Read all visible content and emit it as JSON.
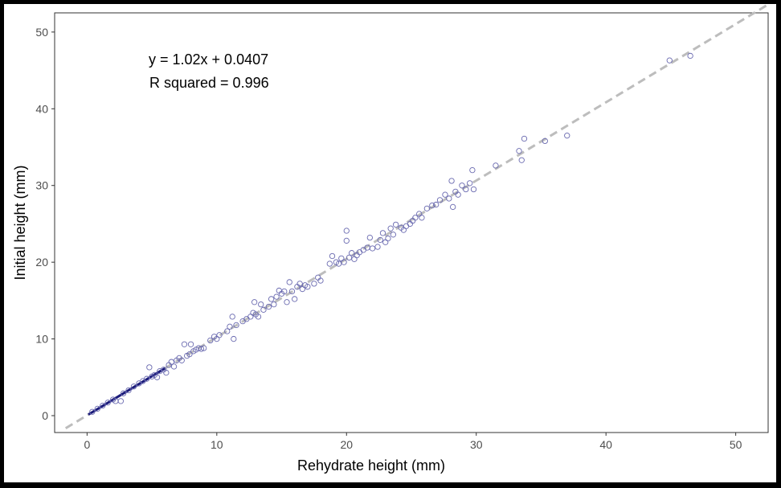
{
  "chart_data": {
    "type": "scatter",
    "xlabel": "Rehydrate height (mm)",
    "ylabel": "Initial height (mm)",
    "xlim": [
      -2.5,
      52.5
    ],
    "ylim": [
      -2.2,
      52.5
    ],
    "xticks": [
      0,
      10,
      20,
      30,
      40,
      50
    ],
    "yticks": [
      0,
      10,
      20,
      30,
      40,
      50
    ],
    "grid": false,
    "annotations": [
      "y = 1.02x + 0.0407",
      "R squared = 0.996"
    ],
    "fit_line": {
      "slope": 1.02,
      "intercept": 0.0407,
      "style": "dashed",
      "color": "#bdbdbd"
    },
    "colors": {
      "points": "#6a6ab0",
      "dense_segment": "#1a1a7a",
      "background": "#ffffff",
      "frame": "#000000"
    },
    "dense_segment": {
      "x_range": [
        0.1,
        6.0
      ]
    },
    "points": [
      [
        0.4,
        0.5
      ],
      [
        0.8,
        0.9
      ],
      [
        1.2,
        1.3
      ],
      [
        1.6,
        1.7
      ],
      [
        2.0,
        2.1
      ],
      [
        2.2,
        1.9
      ],
      [
        2.6,
        1.9
      ],
      [
        2.8,
        2.9
      ],
      [
        3.2,
        3.3
      ],
      [
        3.6,
        3.8
      ],
      [
        4.0,
        4.2
      ],
      [
        4.3,
        4.5
      ],
      [
        4.6,
        4.8
      ],
      [
        4.8,
        6.3
      ],
      [
        5.0,
        5.1
      ],
      [
        5.2,
        5.3
      ],
      [
        5.4,
        5.0
      ],
      [
        5.6,
        5.8
      ],
      [
        5.9,
        6.0
      ],
      [
        6.1,
        5.6
      ],
      [
        6.3,
        6.6
      ],
      [
        6.5,
        7.0
      ],
      [
        6.7,
        6.4
      ],
      [
        6.9,
        7.2
      ],
      [
        7.1,
        7.5
      ],
      [
        7.3,
        7.2
      ],
      [
        7.5,
        9.3
      ],
      [
        7.7,
        7.8
      ],
      [
        7.9,
        8.0
      ],
      [
        8.0,
        9.3
      ],
      [
        8.2,
        8.4
      ],
      [
        8.4,
        8.6
      ],
      [
        8.6,
        8.8
      ],
      [
        8.8,
        8.7
      ],
      [
        9.0,
        8.8
      ],
      [
        9.5,
        9.8
      ],
      [
        9.8,
        10.3
      ],
      [
        10.0,
        10.0
      ],
      [
        10.2,
        10.5
      ],
      [
        10.8,
        11.0
      ],
      [
        11.0,
        11.6
      ],
      [
        11.2,
        12.9
      ],
      [
        11.3,
        10.0
      ],
      [
        11.5,
        11.8
      ],
      [
        12.0,
        12.3
      ],
      [
        12.3,
        12.6
      ],
      [
        12.6,
        12.9
      ],
      [
        12.8,
        13.4
      ],
      [
        12.9,
        14.8
      ],
      [
        13.0,
        13.2
      ],
      [
        13.2,
        12.9
      ],
      [
        13.4,
        14.5
      ],
      [
        13.6,
        13.8
      ],
      [
        14.0,
        14.2
      ],
      [
        14.2,
        15.2
      ],
      [
        14.4,
        14.5
      ],
      [
        14.6,
        15.5
      ],
      [
        14.8,
        16.3
      ],
      [
        15.0,
        15.9
      ],
      [
        15.2,
        16.2
      ],
      [
        15.4,
        14.8
      ],
      [
        15.6,
        17.4
      ],
      [
        15.8,
        16.2
      ],
      [
        16.0,
        15.2
      ],
      [
        16.2,
        16.8
      ],
      [
        16.4,
        17.2
      ],
      [
        16.6,
        16.5
      ],
      [
        16.8,
        17.0
      ],
      [
        17.0,
        16.8
      ],
      [
        17.5,
        17.2
      ],
      [
        17.8,
        18.0
      ],
      [
        18.0,
        17.6
      ],
      [
        18.7,
        19.8
      ],
      [
        18.9,
        20.8
      ],
      [
        19.2,
        20.0
      ],
      [
        19.4,
        19.8
      ],
      [
        19.6,
        20.5
      ],
      [
        19.8,
        20.0
      ],
      [
        20.0,
        24.1
      ],
      [
        20.0,
        22.8
      ],
      [
        20.2,
        20.6
      ],
      [
        20.4,
        21.2
      ],
      [
        20.6,
        20.4
      ],
      [
        20.8,
        20.9
      ],
      [
        21.0,
        21.3
      ],
      [
        21.3,
        21.6
      ],
      [
        21.6,
        21.9
      ],
      [
        21.8,
        23.2
      ],
      [
        22.0,
        21.8
      ],
      [
        22.4,
        22.0
      ],
      [
        22.6,
        22.9
      ],
      [
        22.8,
        23.8
      ],
      [
        23.0,
        22.6
      ],
      [
        23.2,
        23.1
      ],
      [
        23.4,
        24.4
      ],
      [
        23.6,
        23.6
      ],
      [
        23.8,
        24.9
      ],
      [
        24.2,
        24.5
      ],
      [
        24.4,
        24.2
      ],
      [
        24.6,
        24.7
      ],
      [
        24.9,
        25.0
      ],
      [
        25.1,
        25.4
      ],
      [
        25.3,
        25.8
      ],
      [
        25.6,
        26.3
      ],
      [
        25.8,
        25.8
      ],
      [
        26.2,
        27.0
      ],
      [
        26.6,
        27.4
      ],
      [
        26.9,
        27.5
      ],
      [
        27.2,
        28.1
      ],
      [
        27.6,
        28.8
      ],
      [
        27.9,
        28.3
      ],
      [
        28.1,
        30.6
      ],
      [
        28.2,
        27.2
      ],
      [
        28.4,
        29.2
      ],
      [
        28.6,
        28.8
      ],
      [
        28.9,
        30.0
      ],
      [
        29.2,
        29.5
      ],
      [
        29.5,
        30.3
      ],
      [
        29.7,
        32.0
      ],
      [
        29.8,
        29.5
      ],
      [
        31.5,
        32.6
      ],
      [
        33.3,
        34.5
      ],
      [
        33.5,
        33.3
      ],
      [
        33.7,
        36.1
      ],
      [
        35.3,
        35.8
      ],
      [
        37.0,
        36.5
      ],
      [
        44.9,
        46.3
      ],
      [
        46.5,
        46.9
      ]
    ]
  }
}
